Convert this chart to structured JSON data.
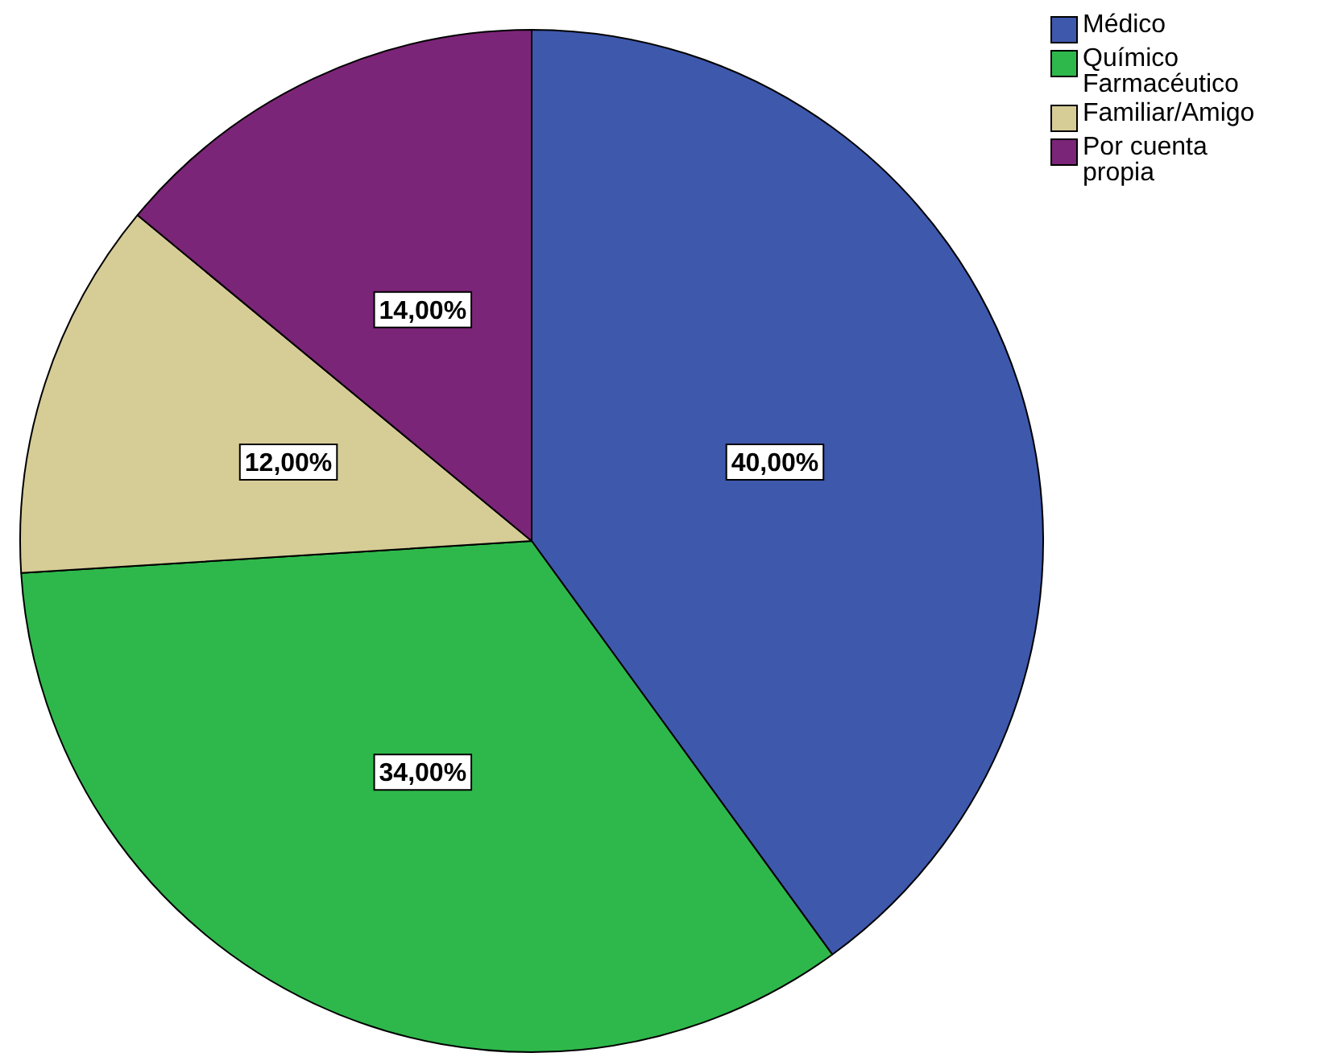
{
  "chart_data": {
    "type": "pie",
    "categories": [
      "Médico",
      "Químico Farmacéutico",
      "Familiar/Amigo",
      "Por cuenta propia"
    ],
    "values": [
      40,
      34,
      12,
      14
    ],
    "colors": [
      "#3e58ac",
      "#2eb84b",
      "#d6cc96",
      "#7b2578"
    ],
    "value_labels": [
      "40,00%",
      "34,00%",
      "12,00%",
      "14,00%"
    ],
    "legend": "top right"
  }
}
